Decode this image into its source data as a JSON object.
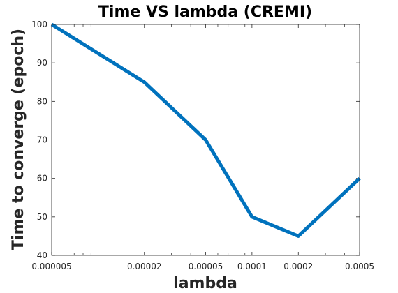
{
  "chart_data": {
    "type": "line",
    "title": "Time VS lambda (CREMI)",
    "xlabel": "lambda",
    "ylabel": "Time to converge (epoch)",
    "x_scale": "log",
    "xlim": [
      5e-06,
      0.0005
    ],
    "ylim": [
      40,
      100
    ],
    "grid": false,
    "x_ticks": [
      5e-06,
      2e-05,
      5e-05,
      0.0001,
      0.0002,
      0.0005
    ],
    "x_tick_labels": [
      "0.000005",
      "0.00002",
      "0.00005",
      "0.0001",
      "0.0002",
      "0.0005"
    ],
    "y_ticks": [
      40,
      50,
      60,
      70,
      80,
      90,
      100
    ],
    "y_tick_labels": [
      "40",
      "50",
      "60",
      "70",
      "80",
      "90",
      "100"
    ],
    "series": [
      {
        "color": "#0072BD",
        "x": [
          5e-06,
          2e-05,
          5e-05,
          0.0001,
          0.0002,
          0.0005
        ],
        "y": [
          100,
          85,
          70,
          50,
          45,
          60
        ]
      }
    ]
  }
}
